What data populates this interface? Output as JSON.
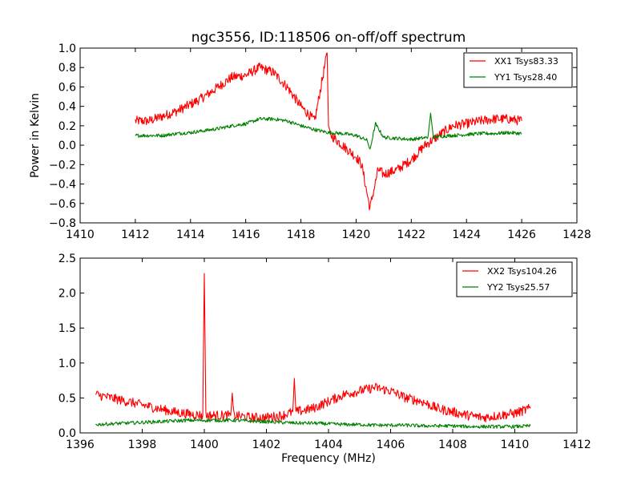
{
  "chart_data": [
    {
      "type": "line",
      "title": "ngc3556, ID:118506 on-off/off spectrum",
      "xlabel": "",
      "ylabel": "Power in Kelvin",
      "xlim": [
        1410,
        1428
      ],
      "ylim": [
        -0.8,
        1.0
      ],
      "xticks": [
        "1410",
        "1412",
        "1414",
        "1416",
        "1418",
        "1420",
        "1422",
        "1424",
        "1426",
        "1428"
      ],
      "yticks": [
        "−0.8",
        "−0.6",
        "−0.4",
        "−0.2",
        "0.0",
        "0.2",
        "0.4",
        "0.6",
        "0.8",
        "1.0"
      ],
      "grid": false,
      "legend_position": "top-right",
      "series": [
        {
          "name": "XX1 Tsys83.33",
          "color": "#ff0000",
          "x": [
            1412.0,
            1412.5,
            1413.0,
            1413.5,
            1414.0,
            1414.5,
            1415.0,
            1415.5,
            1416.0,
            1416.5,
            1417.0,
            1417.5,
            1418.0,
            1418.5,
            1418.95,
            1419.0,
            1419.1,
            1419.5,
            1420.0,
            1420.2,
            1420.5,
            1420.8,
            1421.0,
            1421.5,
            1422.0,
            1422.5,
            1423.0,
            1423.5,
            1424.0,
            1424.5,
            1425.0,
            1425.5,
            1426.0
          ],
          "y": [
            0.25,
            0.25,
            0.3,
            0.35,
            0.42,
            0.5,
            0.6,
            0.7,
            0.72,
            0.8,
            0.75,
            0.6,
            0.4,
            0.25,
            0.95,
            0.2,
            0.1,
            0.0,
            -0.12,
            -0.2,
            -0.65,
            -0.25,
            -0.3,
            -0.25,
            -0.15,
            0.0,
            0.1,
            0.2,
            0.22,
            0.25,
            0.27,
            0.27,
            0.25
          ]
        },
        {
          "name": "YY1 Tsys28.40",
          "color": "#008000",
          "x": [
            1412.0,
            1412.5,
            1413.0,
            1413.5,
            1414.0,
            1414.5,
            1415.0,
            1415.5,
            1416.0,
            1416.5,
            1417.0,
            1417.5,
            1418.0,
            1418.5,
            1419.0,
            1419.5,
            1420.0,
            1420.4,
            1420.5,
            1420.7,
            1421.0,
            1421.5,
            1422.0,
            1422.6,
            1422.7,
            1422.8,
            1423.0,
            1423.5,
            1424.0,
            1424.5,
            1425.0,
            1425.5,
            1426.0
          ],
          "y": [
            0.1,
            0.1,
            0.1,
            0.12,
            0.13,
            0.15,
            0.17,
            0.2,
            0.22,
            0.27,
            0.27,
            0.25,
            0.2,
            0.16,
            0.13,
            0.12,
            0.1,
            0.05,
            -0.05,
            0.22,
            0.08,
            0.07,
            0.06,
            0.08,
            0.33,
            0.08,
            0.09,
            0.1,
            0.11,
            0.12,
            0.12,
            0.13,
            0.12
          ]
        }
      ]
    },
    {
      "type": "line",
      "title": "",
      "xlabel": "Frequency (MHz)",
      "ylabel": "",
      "xlim": [
        1396,
        1412
      ],
      "ylim": [
        0.0,
        2.5
      ],
      "xticks": [
        "1396",
        "1398",
        "1400",
        "1402",
        "1404",
        "1406",
        "1408",
        "1410",
        "1412"
      ],
      "yticks": [
        "0.0",
        "0.5",
        "1.0",
        "1.5",
        "2.0",
        "2.5"
      ],
      "grid": false,
      "legend_position": "top-right",
      "series": [
        {
          "name": "XX2 Tsys104.26",
          "color": "#ff0000",
          "x": [
            1396.5,
            1397.0,
            1397.5,
            1398.0,
            1398.5,
            1399.0,
            1399.5,
            1399.95,
            1400.0,
            1400.05,
            1400.5,
            1400.85,
            1400.9,
            1400.95,
            1401.5,
            1402.0,
            1402.5,
            1402.85,
            1402.9,
            1402.95,
            1403.5,
            1404.0,
            1404.5,
            1405.0,
            1405.5,
            1406.0,
            1406.5,
            1407.0,
            1407.5,
            1408.0,
            1408.5,
            1409.0,
            1409.5,
            1410.0,
            1410.5
          ],
          "y": [
            0.55,
            0.5,
            0.45,
            0.4,
            0.35,
            0.3,
            0.27,
            0.25,
            2.28,
            0.25,
            0.25,
            0.25,
            0.57,
            0.25,
            0.22,
            0.22,
            0.25,
            0.3,
            0.78,
            0.3,
            0.35,
            0.45,
            0.55,
            0.6,
            0.65,
            0.6,
            0.5,
            0.45,
            0.35,
            0.3,
            0.25,
            0.22,
            0.25,
            0.28,
            0.35
          ]
        },
        {
          "name": "YY2 Tsys25.57",
          "color": "#008000",
          "x": [
            1396.5,
            1397.0,
            1397.5,
            1398.0,
            1398.5,
            1399.0,
            1399.5,
            1400.0,
            1400.5,
            1401.0,
            1401.5,
            1402.0,
            1402.5,
            1403.0,
            1403.5,
            1404.0,
            1404.5,
            1405.0,
            1405.5,
            1406.0,
            1406.5,
            1407.0,
            1407.5,
            1408.0,
            1408.5,
            1409.0,
            1409.5,
            1410.0,
            1410.5
          ],
          "y": [
            0.12,
            0.13,
            0.14,
            0.15,
            0.16,
            0.17,
            0.18,
            0.18,
            0.18,
            0.18,
            0.17,
            0.16,
            0.15,
            0.14,
            0.14,
            0.13,
            0.12,
            0.12,
            0.11,
            0.11,
            0.11,
            0.1,
            0.1,
            0.1,
            0.09,
            0.09,
            0.09,
            0.09,
            0.1
          ]
        }
      ]
    }
  ]
}
